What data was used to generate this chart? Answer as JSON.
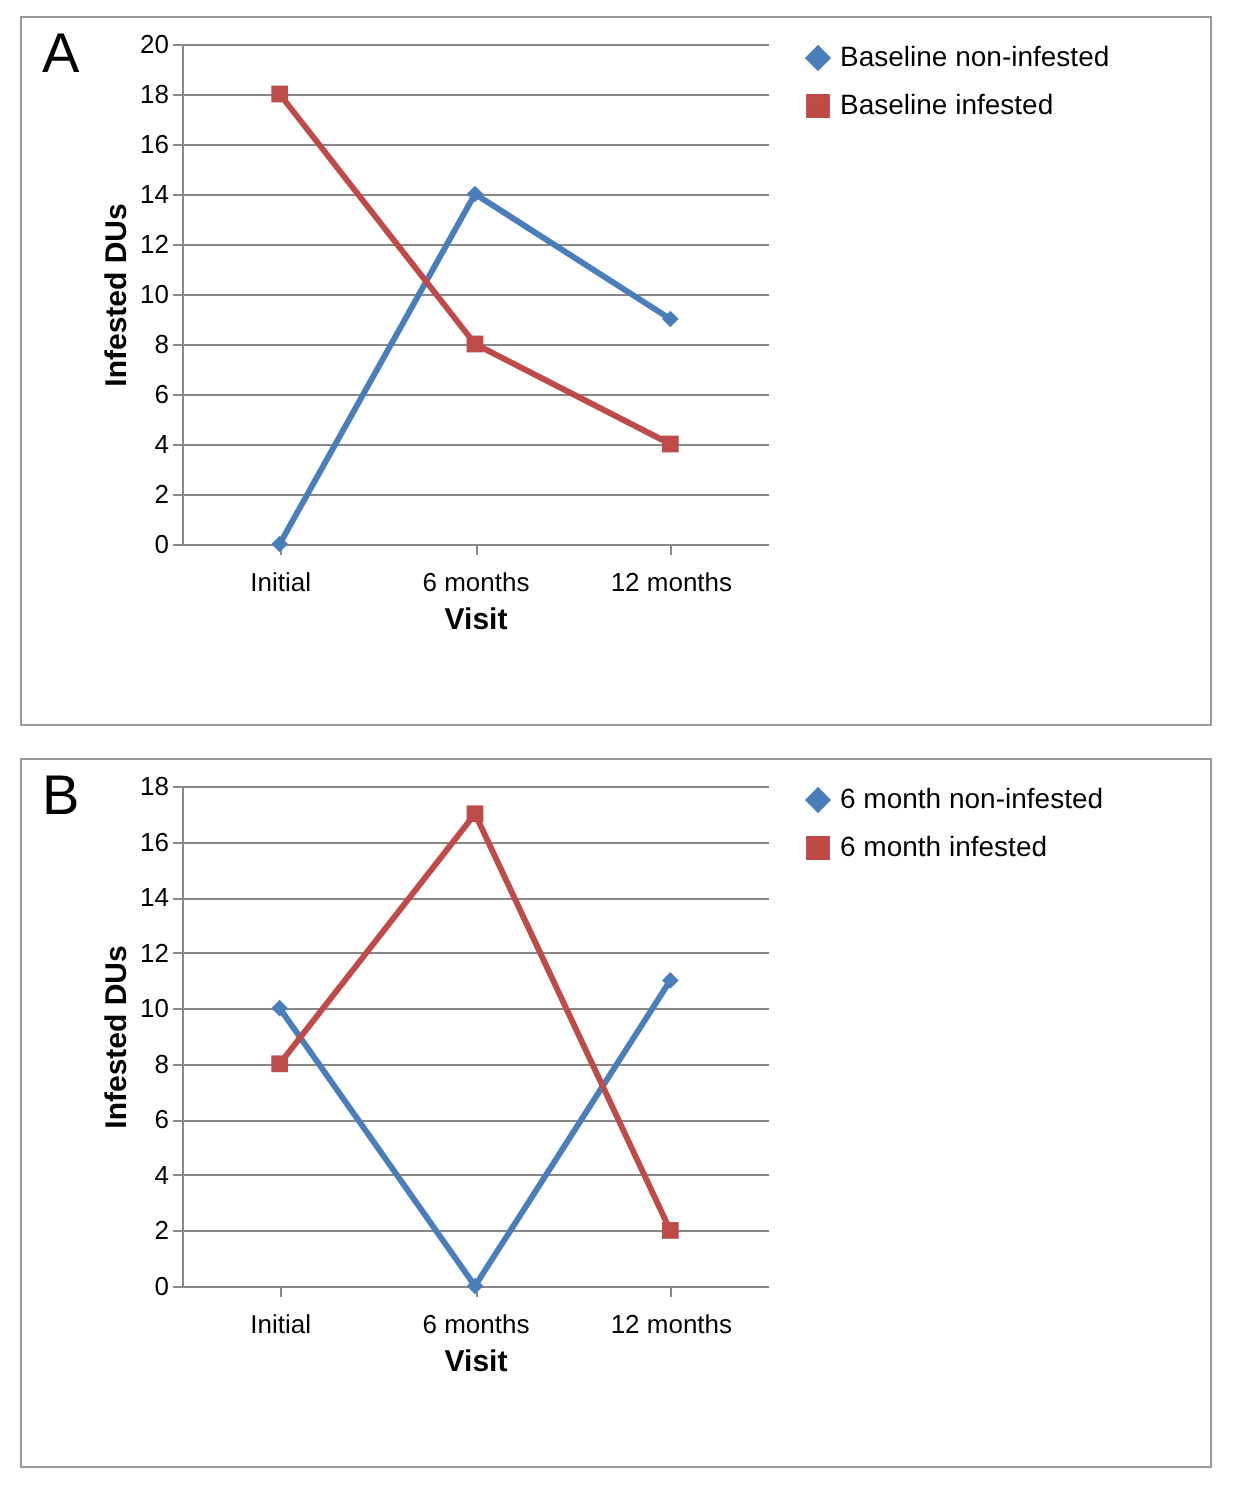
{
  "chart_data": [
    {
      "type": "line",
      "title": "A",
      "xlabel": "Visit",
      "ylabel": "Infested DUs",
      "categories": [
        "Initial",
        "6 months",
        "12 months"
      ],
      "ylim": [
        0,
        20
      ],
      "yticks": [
        0,
        2,
        4,
        6,
        8,
        10,
        12,
        14,
        16,
        18,
        20
      ],
      "grid": "y",
      "legend": "right",
      "series": [
        {
          "name": "Baseline non-infested",
          "color": "#4a7ebb",
          "marker": "diamond",
          "values": [
            0,
            14,
            9
          ]
        },
        {
          "name": "Baseline infested",
          "color": "#be4b48",
          "marker": "square",
          "values": [
            18,
            8,
            4
          ]
        }
      ]
    },
    {
      "type": "line",
      "title": "B",
      "xlabel": "Visit",
      "ylabel": "Infested DUs",
      "categories": [
        "Initial",
        "6 months",
        "12 months"
      ],
      "ylim": [
        0,
        18
      ],
      "yticks": [
        0,
        2,
        4,
        6,
        8,
        10,
        12,
        14,
        16,
        18
      ],
      "grid": "y",
      "legend": "right",
      "series": [
        {
          "name": "6 month non-infested",
          "color": "#4a7ebb",
          "marker": "diamond",
          "values": [
            10,
            0,
            11
          ]
        },
        {
          "name": "6 month infested",
          "color": "#be4b48",
          "marker": "square",
          "values": [
            8,
            17,
            2
          ]
        }
      ]
    }
  ]
}
